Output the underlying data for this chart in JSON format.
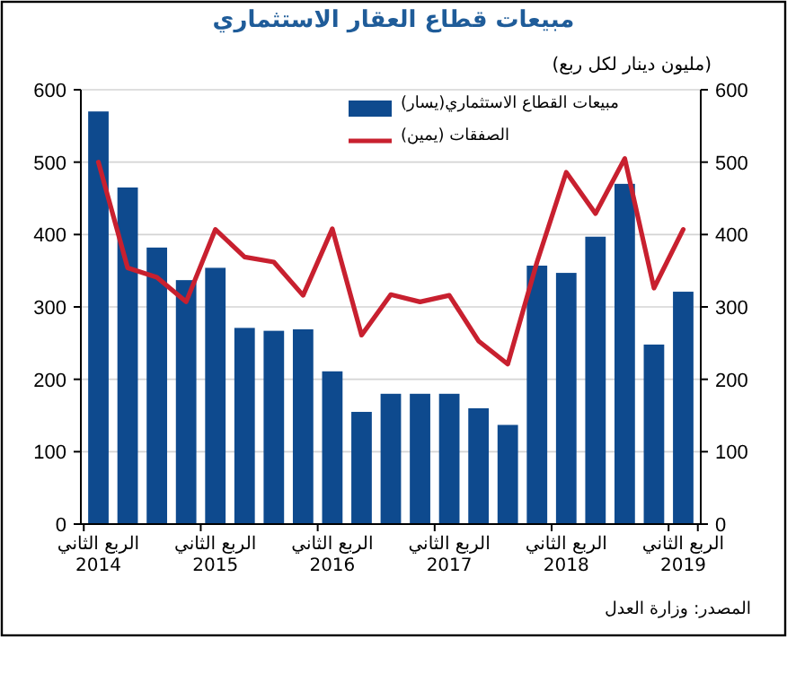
{
  "chart_data": {
    "type": "bar",
    "title": "مبيعات قطاع العقار الاستثماري",
    "subtitle": "(مليون دينار لكل ربع)",
    "categories": [
      "الربع الثاني 2014",
      null,
      null,
      null,
      "الربع الثاني 2015",
      null,
      null,
      null,
      "الربع الثاني 2016",
      null,
      null,
      null,
      "الربع الثاني 2017",
      null,
      null,
      null,
      "الربع الثاني 2018",
      null,
      null,
      null,
      "الربع الثاني 2019"
    ],
    "series": [
      {
        "name": "مبيعات القطاع الاستثماري(يسار)",
        "color": "#0e4a8e",
        "values": [
          570,
          465,
          382,
          337,
          354,
          271,
          267,
          269,
          211,
          155,
          180,
          180,
          180,
          160,
          137,
          357,
          347,
          397,
          470,
          248,
          321
        ]
      },
      {
        "name": "الصفقات (يمين)",
        "type": "line",
        "axis": "y2",
        "color": "#c8202f",
        "values": [
          500,
          354,
          341,
          307,
          407,
          369,
          362,
          316,
          408,
          261,
          317,
          307,
          316,
          253,
          221,
          362,
          486,
          429,
          505,
          326,
          407
        ]
      }
    ],
    "ylim": [
      0,
      600
    ],
    "yticks": [
      0,
      100,
      200,
      300,
      400,
      500,
      600
    ],
    "y2lim": [
      0,
      600
    ],
    "y2ticks": [
      0,
      100,
      200,
      300,
      400,
      500,
      600
    ],
    "grid": "y",
    "legend": "top right",
    "annotations": [
      "المصدر: وزارة العدل"
    ]
  }
}
